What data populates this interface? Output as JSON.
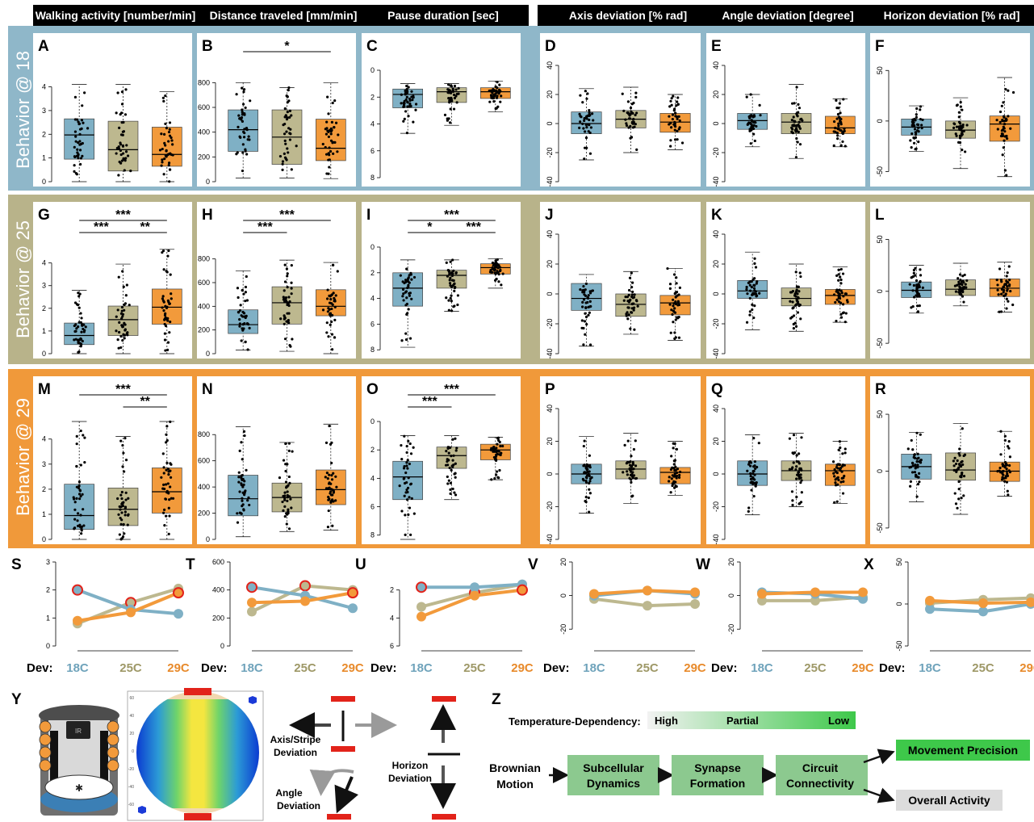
{
  "colors": {
    "blue": "#7fb0c5",
    "blue_dark": "#5e9ab3",
    "olive": "#bdb88f",
    "olive_dark": "#a9a377",
    "orange": "#f29a3b",
    "orange_dark": "#e88a2b",
    "red_ring": "#e2231a",
    "bracket_red": "#e2231a",
    "green": "#3ec84a",
    "header_bg": "#000000"
  },
  "metrics": [
    "Walking activity [number/min]",
    "Distance traveled [mm/min]",
    "Pause duration [sec]",
    "Axis deviation   [% rad]",
    "Angle deviation   [degree]",
    "Horizon deviation [% rad]"
  ],
  "row_labels": [
    "Behavior @ 18",
    "Behavior @ 25",
    "Behavior @ 29"
  ],
  "panel_letters": [
    [
      "A",
      "B",
      "C",
      "D",
      "E",
      "F"
    ],
    [
      "G",
      "H",
      "I",
      "J",
      "K",
      "L"
    ],
    [
      "M",
      "N",
      "O",
      "P",
      "Q",
      "R"
    ]
  ],
  "trend_letters": [
    "S",
    "T",
    "U",
    "V",
    "W",
    "X"
  ],
  "dev_label": "Dev:",
  "dev_temps": [
    "18C",
    "25C",
    "29C"
  ],
  "chart_data": [
    {
      "type": "box",
      "metric_index": 0,
      "axis": {
        "min": 0,
        "max": 4.7,
        "ticks": [
          0,
          1,
          2,
          3,
          4
        ],
        "invert": false
      },
      "rows": [
        {
          "boxes": [
            {
              "q1": 0.95,
              "median": 1.97,
              "q3": 2.65,
              "lo": 0,
              "hi": 4.1
            },
            {
              "q1": 0.45,
              "median": 1.35,
              "q3": 2.55,
              "lo": 0,
              "hi": 4.1
            },
            {
              "q1": 0.65,
              "median": 1.15,
              "q3": 2.3,
              "lo": 0,
              "hi": 3.8
            }
          ],
          "sig": []
        },
        {
          "boxes": [
            {
              "q1": 0.4,
              "median": 0.8,
              "q3": 1.35,
              "lo": 0,
              "hi": 2.8
            },
            {
              "q1": 0.8,
              "median": 1.5,
              "q3": 2.1,
              "lo": 0,
              "hi": 3.95
            },
            {
              "q1": 1.3,
              "median": 2.05,
              "q3": 2.85,
              "lo": 0,
              "hi": 4.6
            }
          ],
          "sig": [
            {
              "from": 0,
              "to": 2,
              "label": "***",
              "level": 0
            },
            {
              "from": 0,
              "to": 1,
              "label": "***",
              "level": 1
            },
            {
              "from": 1,
              "to": 2,
              "label": "**",
              "level": 1
            }
          ]
        },
        {
          "boxes": [
            {
              "q1": 0.4,
              "median": 0.95,
              "q3": 2.2,
              "lo": 0,
              "hi": 4.7
            },
            {
              "q1": 0.55,
              "median": 1.2,
              "q3": 2.05,
              "lo": 0,
              "hi": 4.1
            },
            {
              "q1": 1.05,
              "median": 1.9,
              "q3": 2.85,
              "lo": 0,
              "hi": 4.7
            }
          ],
          "sig": [
            {
              "from": 0,
              "to": 2,
              "label": "***",
              "level": 0
            },
            {
              "from": 1,
              "to": 2,
              "label": "**",
              "level": 1
            }
          ]
        }
      ]
    },
    {
      "type": "box",
      "metric_index": 1,
      "axis": {
        "min": 0,
        "max": 900,
        "ticks": [
          0,
          200,
          400,
          600,
          800
        ],
        "invert": false
      },
      "rows": [
        {
          "boxes": [
            {
              "q1": 245,
              "median": 420,
              "q3": 580,
              "lo": 30,
              "hi": 800
            },
            {
              "q1": 140,
              "median": 360,
              "q3": 580,
              "lo": 30,
              "hi": 760
            },
            {
              "q1": 170,
              "median": 270,
              "q3": 505,
              "lo": 25,
              "hi": 800
            }
          ],
          "sig": [
            {
              "from": 0,
              "to": 2,
              "label": "*",
              "level": 0
            }
          ]
        },
        {
          "boxes": [
            {
              "q1": 170,
              "median": 245,
              "q3": 370,
              "lo": 30,
              "hi": 700
            },
            {
              "q1": 250,
              "median": 430,
              "q3": 565,
              "lo": 20,
              "hi": 790
            },
            {
              "q1": 320,
              "median": 400,
              "q3": 540,
              "lo": 0,
              "hi": 770
            }
          ],
          "sig": [
            {
              "from": 0,
              "to": 2,
              "label": "***",
              "level": 0
            },
            {
              "from": 0,
              "to": 1,
              "label": "***",
              "level": 1
            }
          ]
        },
        {
          "boxes": [
            {
              "q1": 180,
              "median": 310,
              "q3": 490,
              "lo": 20,
              "hi": 860
            },
            {
              "q1": 210,
              "median": 320,
              "q3": 430,
              "lo": 60,
              "hi": 740
            },
            {
              "q1": 265,
              "median": 380,
              "q3": 530,
              "lo": 70,
              "hi": 880
            }
          ],
          "sig": []
        }
      ]
    },
    {
      "type": "box",
      "metric_index": 2,
      "axis": {
        "min": 0,
        "max": 8.3,
        "ticks": [
          0,
          2,
          4,
          6,
          8
        ],
        "invert": true
      },
      "rows": [
        {
          "boxes": [
            {
              "q1": 1.4,
              "median": 1.8,
              "q3": 2.8,
              "lo": 1,
              "hi": 4.7
            },
            {
              "q1": 1.3,
              "median": 1.6,
              "q3": 2.4,
              "lo": 1,
              "hi": 4.1
            },
            {
              "q1": 1.3,
              "median": 1.6,
              "q3": 2.1,
              "lo": 0.8,
              "hi": 3.1
            }
          ],
          "sig": []
        },
        {
          "boxes": [
            {
              "q1": 2,
              "median": 3.2,
              "q3": 4.6,
              "lo": 1,
              "hi": 7.8
            },
            {
              "q1": 1.8,
              "median": 2.2,
              "q3": 3.2,
              "lo": 1,
              "hi": 5
            },
            {
              "q1": 1.3,
              "median": 1.6,
              "q3": 2.1,
              "lo": 0.9,
              "hi": 3.2
            }
          ],
          "sig": [
            {
              "from": 0,
              "to": 2,
              "label": "***",
              "level": 0
            },
            {
              "from": 0,
              "to": 1,
              "label": "*",
              "level": 1
            },
            {
              "from": 1,
              "to": 2,
              "label": "***",
              "level": 1
            }
          ]
        },
        {
          "boxes": [
            {
              "q1": 2.8,
              "median": 3.9,
              "q3": 5.5,
              "lo": 1,
              "hi": 8.3
            },
            {
              "q1": 1.8,
              "median": 2.4,
              "q3": 3.3,
              "lo": 1,
              "hi": 5.5
            },
            {
              "q1": 1.6,
              "median": 2,
              "q3": 2.7,
              "lo": 1.1,
              "hi": 4.1
            }
          ],
          "sig": [
            {
              "from": 0,
              "to": 2,
              "label": "***",
              "level": 0
            },
            {
              "from": 0,
              "to": 1,
              "label": "***",
              "level": 1
            }
          ]
        }
      ]
    },
    {
      "type": "box",
      "metric_index": 3,
      "axis": {
        "min": -40,
        "max": 40,
        "ticks": [
          -40,
          -20,
          0,
          20,
          40
        ],
        "invert": false
      },
      "rows": [
        {
          "boxes": [
            {
              "q1": -7,
              "median": 0,
              "q3": 8,
              "lo": -25,
              "hi": 24
            },
            {
              "q1": -3,
              "median": 3,
              "q3": 9,
              "lo": -20,
              "hi": 25
            },
            {
              "q1": -6,
              "median": 1,
              "q3": 7,
              "lo": -18,
              "hi": 20
            }
          ],
          "sig": []
        },
        {
          "boxes": [
            {
              "q1": -11,
              "median": -3,
              "q3": 7,
              "lo": -35,
              "hi": 13
            },
            {
              "q1": -15,
              "median": -7,
              "q3": 0,
              "lo": -27,
              "hi": 15
            },
            {
              "q1": -14,
              "median": -6,
              "q3": -1,
              "lo": -31,
              "hi": 17
            }
          ],
          "sig": []
        },
        {
          "boxes": [
            {
              "q1": -6,
              "median": 0,
              "q3": 6,
              "lo": -24,
              "hi": 23
            },
            {
              "q1": -3,
              "median": 3,
              "q3": 8,
              "lo": -18,
              "hi": 25
            },
            {
              "q1": -6,
              "median": 1,
              "q3": 4,
              "lo": -13,
              "hi": 20
            }
          ],
          "sig": []
        }
      ]
    },
    {
      "type": "box",
      "metric_index": 4,
      "axis": {
        "min": -40,
        "max": 40,
        "ticks": [
          -40,
          -20,
          0,
          20,
          40
        ],
        "invert": false
      },
      "rows": [
        {
          "boxes": [
            {
              "q1": -4,
              "median": 2,
              "q3": 7,
              "lo": -16,
              "hi": 20
            },
            {
              "q1": -7,
              "median": 1,
              "q3": 7,
              "lo": -24,
              "hi": 27
            },
            {
              "q1": -7,
              "median": -3,
              "q3": 5,
              "lo": -16,
              "hi": 17
            }
          ],
          "sig": []
        },
        {
          "boxes": [
            {
              "q1": -3,
              "median": 2,
              "q3": 9,
              "lo": -24,
              "hi": 28
            },
            {
              "q1": -8,
              "median": -3,
              "q3": 4,
              "lo": -25,
              "hi": 20
            },
            {
              "q1": -7,
              "median": -1,
              "q3": 3,
              "lo": -19,
              "hi": 18
            }
          ],
          "sig": []
        },
        {
          "boxes": [
            {
              "q1": -7,
              "median": 0,
              "q3": 8,
              "lo": -25,
              "hi": 24
            },
            {
              "q1": -4,
              "median": 2,
              "q3": 8,
              "lo": -20,
              "hi": 25
            },
            {
              "q1": -7,
              "median": 2,
              "q3": 6,
              "lo": -18,
              "hi": 20
            }
          ],
          "sig": []
        }
      ]
    },
    {
      "type": "box",
      "metric_index": 5,
      "axis": {
        "min": -60,
        "max": 55,
        "ticks": [
          -50,
          0,
          50
        ],
        "invert": false
      },
      "rows": [
        {
          "boxes": [
            {
              "q1": -14,
              "median": -6,
              "q3": 2,
              "lo": -30,
              "hi": 15
            },
            {
              "q1": -17,
              "median": -9,
              "q3": 0,
              "lo": -47,
              "hi": 23
            },
            {
              "q1": -20,
              "median": -3,
              "q3": 5,
              "lo": -55,
              "hi": 43
            }
          ],
          "sig": []
        },
        {
          "boxes": [
            {
              "q1": -6,
              "median": 1,
              "q3": 9,
              "lo": -21,
              "hi": 25
            },
            {
              "q1": -4,
              "median": 2,
              "q3": 11,
              "lo": -14,
              "hi": 27
            },
            {
              "q1": -5,
              "median": 3,
              "q3": 12,
              "lo": -20,
              "hi": 28
            }
          ],
          "sig": []
        },
        {
          "boxes": [
            {
              "q1": -7,
              "median": 4,
              "q3": 15,
              "lo": -27,
              "hi": 34
            },
            {
              "q1": -8,
              "median": 1,
              "q3": 16,
              "lo": -38,
              "hi": 42
            },
            {
              "q1": -9,
              "median": 0,
              "q3": 8,
              "lo": -22,
              "hi": 35
            }
          ],
          "sig": []
        }
      ]
    }
  ],
  "trend_data": [
    {
      "type": "line",
      "axis": {
        "min": 0,
        "max": 3,
        "ticks": [
          0,
          1,
          2,
          3
        ],
        "invert": false
      },
      "series": [
        {
          "values": [
            2,
            1.3,
            1.15
          ],
          "ring": [
            true,
            false,
            false
          ]
        },
        {
          "values": [
            0.8,
            1.55,
            2.05
          ],
          "ring": [
            false,
            true,
            false
          ]
        },
        {
          "values": [
            0.9,
            1.2,
            1.9
          ],
          "ring": [
            false,
            false,
            true
          ]
        }
      ]
    },
    {
      "type": "line",
      "axis": {
        "min": 0,
        "max": 600,
        "ticks": [
          0,
          200,
          400,
          600
        ],
        "invert": false
      },
      "series": [
        {
          "values": [
            420,
            360,
            270
          ],
          "ring": [
            true,
            false,
            false
          ]
        },
        {
          "values": [
            245,
            430,
            400
          ],
          "ring": [
            false,
            true,
            false
          ]
        },
        {
          "values": [
            310,
            320,
            380
          ],
          "ring": [
            false,
            false,
            true
          ]
        }
      ]
    },
    {
      "type": "line",
      "axis": {
        "min": 0,
        "max": 6,
        "ticks": [
          2,
          4,
          6
        ],
        "invert": true
      },
      "series": [
        {
          "values": [
            1.8,
            1.8,
            1.6
          ],
          "ring": [
            true,
            false,
            false
          ]
        },
        {
          "values": [
            3.2,
            2.2,
            1.6
          ],
          "ring": [
            false,
            true,
            false
          ]
        },
        {
          "values": [
            3.9,
            2.4,
            2
          ],
          "ring": [
            false,
            false,
            true
          ]
        }
      ]
    },
    {
      "type": "line",
      "axis": {
        "min": -30,
        "max": 20,
        "ticks": [
          -20,
          0,
          20
        ],
        "invert": false
      },
      "series": [
        {
          "values": [
            0,
            3,
            1
          ],
          "ring": [
            false,
            false,
            false
          ]
        },
        {
          "values": [
            -2,
            -6,
            -5
          ],
          "ring": [
            false,
            false,
            false
          ]
        },
        {
          "values": [
            1,
            3,
            2
          ],
          "ring": [
            false,
            false,
            false
          ]
        }
      ]
    },
    {
      "type": "line",
      "axis": {
        "min": -30,
        "max": 20,
        "ticks": [
          -20,
          0,
          20
        ],
        "invert": false
      },
      "series": [
        {
          "values": [
            2,
            1,
            -2
          ],
          "ring": [
            false,
            false,
            false
          ]
        },
        {
          "values": [
            -3,
            -3,
            -1
          ],
          "ring": [
            false,
            false,
            false
          ]
        },
        {
          "values": [
            1,
            2,
            2
          ],
          "ring": [
            false,
            false,
            false
          ]
        }
      ]
    },
    {
      "type": "line",
      "axis": {
        "min": -50,
        "max": 50,
        "ticks": [
          -50,
          0,
          50
        ],
        "invert": false
      },
      "series": [
        {
          "values": [
            -6,
            -9,
            0
          ],
          "ring": [
            false,
            false,
            false
          ]
        },
        {
          "values": [
            1,
            5,
            7
          ],
          "ring": [
            false,
            false,
            false
          ]
        },
        {
          "values": [
            4,
            1,
            2
          ],
          "ring": [
            false,
            false,
            false
          ]
        }
      ]
    }
  ],
  "panel_y": {
    "letter": "Y",
    "heatmap_ticks": [
      "60",
      "40",
      "20",
      "0",
      "-20",
      "-40",
      "-60"
    ],
    "chip_label": "IR"
  },
  "deviation_labels": {
    "axis_stripe": [
      "Axis/Stripe",
      "Deviation"
    ],
    "angle": [
      "Angle",
      "Deviation"
    ],
    "horizon": [
      "Horizon",
      "Deviation"
    ]
  },
  "panel_z": {
    "letter": "Z",
    "temp_dep_label": "Temperature-Dependency:",
    "gradient_labels": [
      "High",
      "Partial",
      "Low"
    ],
    "start": [
      "Brownian",
      "Motion"
    ],
    "steps": [
      [
        "Subcellular",
        "Dynamics"
      ],
      [
        "Synapse",
        "Formation"
      ],
      [
        "Circuit",
        "Connectivity"
      ]
    ],
    "outputs": [
      "Movement Precision",
      "Overall Activity"
    ]
  }
}
